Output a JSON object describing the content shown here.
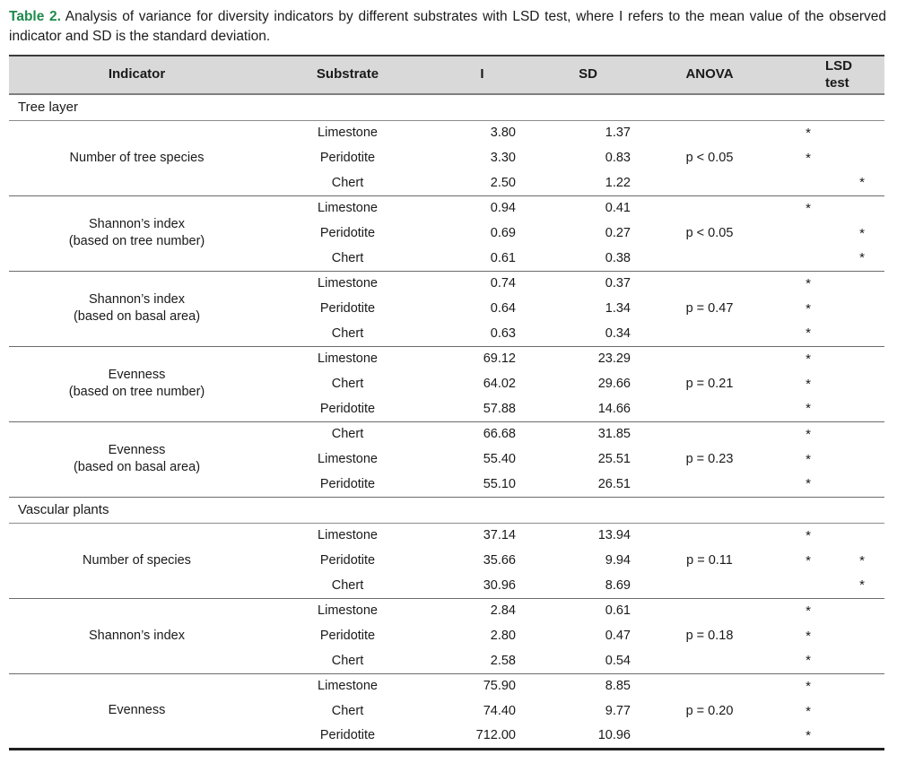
{
  "caption": {
    "label": "Table 2.",
    "text": "Analysis of variance for diversity indicators by different substrates with LSD test, where I refers to the mean value of the observed indicator and SD is the standard deviation."
  },
  "accent_color": "#1e8a4c",
  "header": {
    "indicator": "Indicator",
    "substrate": "Substrate",
    "i": "I",
    "sd": "SD",
    "anova": "ANOVA",
    "lsd": "LSD\ntest"
  },
  "sections": [
    {
      "title": "Tree layer",
      "groups": [
        {
          "indicator": "Number of tree species",
          "anova": "p < 0.05",
          "rows": [
            {
              "substrate": "Limestone",
              "i": "3.80",
              "sd": "1.37",
              "lsd1": "*",
              "lsd2": ""
            },
            {
              "substrate": "Peridotite",
              "i": "3.30",
              "sd": "0.83",
              "lsd1": "*",
              "lsd2": ""
            },
            {
              "substrate": "Chert",
              "i": "2.50",
              "sd": "1.22",
              "lsd1": "",
              "lsd2": "*"
            }
          ]
        },
        {
          "indicator": "Shannon’s index\n(based on tree number)",
          "anova": "p < 0.05",
          "rows": [
            {
              "substrate": "Limestone",
              "i": "0.94",
              "sd": "0.41",
              "lsd1": "*",
              "lsd2": ""
            },
            {
              "substrate": "Peridotite",
              "i": "0.69",
              "sd": "0.27",
              "lsd1": "",
              "lsd2": "*"
            },
            {
              "substrate": "Chert",
              "i": "0.61",
              "sd": "0.38",
              "lsd1": "",
              "lsd2": "*"
            }
          ]
        },
        {
          "indicator": "Shannon’s index\n(based on basal area)",
          "anova": "p = 0.47",
          "rows": [
            {
              "substrate": "Limestone",
              "i": "0.74",
              "sd": "0.37",
              "lsd1": "*",
              "lsd2": ""
            },
            {
              "substrate": "Peridotite",
              "i": "0.64",
              "sd": "1.34",
              "lsd1": "*",
              "lsd2": ""
            },
            {
              "substrate": "Chert",
              "i": "0.63",
              "sd": "0.34",
              "lsd1": "*",
              "lsd2": ""
            }
          ]
        },
        {
          "indicator": "Evenness\n(based on tree number)",
          "anova": "p = 0.21",
          "rows": [
            {
              "substrate": "Limestone",
              "i": "69.12",
              "sd": "23.29",
              "lsd1": "*",
              "lsd2": ""
            },
            {
              "substrate": "Chert",
              "i": "64.02",
              "sd": "29.66",
              "lsd1": "*",
              "lsd2": ""
            },
            {
              "substrate": "Peridotite",
              "i": "57.88",
              "sd": "14.66",
              "lsd1": "*",
              "lsd2": ""
            }
          ]
        },
        {
          "indicator": "Evenness\n(based on basal area)",
          "anova": "p = 0.23",
          "rows": [
            {
              "substrate": "Chert",
              "i": "66.68",
              "sd": "31.85",
              "lsd1": "*",
              "lsd2": ""
            },
            {
              "substrate": "Limestone",
              "i": "55.40",
              "sd": "25.51",
              "lsd1": "*",
              "lsd2": ""
            },
            {
              "substrate": "Peridotite",
              "i": "55.10",
              "sd": "26.51",
              "lsd1": "*",
              "lsd2": ""
            }
          ]
        }
      ]
    },
    {
      "title": "Vascular plants",
      "groups": [
        {
          "indicator": "Number of species",
          "anova": "p = 0.11",
          "rows": [
            {
              "substrate": "Limestone",
              "i": "37.14",
              "sd": "13.94",
              "lsd1": "*",
              "lsd2": ""
            },
            {
              "substrate": "Peridotite",
              "i": "35.66",
              "sd": "9.94",
              "lsd1": "*",
              "lsd2": "*"
            },
            {
              "substrate": "Chert",
              "i": "30.96",
              "sd": "8.69",
              "lsd1": "",
              "lsd2": "*"
            }
          ]
        },
        {
          "indicator": "Shannon’s index",
          "anova": "p = 0.18",
          "rows": [
            {
              "substrate": "Limestone",
              "i": "2.84",
              "sd": "0.61",
              "lsd1": "*",
              "lsd2": ""
            },
            {
              "substrate": "Peridotite",
              "i": "2.80",
              "sd": "0.47",
              "lsd1": "*",
              "lsd2": ""
            },
            {
              "substrate": "Chert",
              "i": "2.58",
              "sd": "0.54",
              "lsd1": "*",
              "lsd2": ""
            }
          ]
        },
        {
          "indicator": "Evenness",
          "anova": "p = 0.20",
          "rows": [
            {
              "substrate": "Limestone",
              "i": "75.90",
              "sd": "8.85",
              "lsd1": "*",
              "lsd2": ""
            },
            {
              "substrate": "Chert",
              "i": "74.40",
              "sd": "9.77",
              "lsd1": "*",
              "lsd2": ""
            },
            {
              "substrate": "Peridotite",
              "i": "712.00",
              "sd": "10.96",
              "lsd1": "*",
              "lsd2": ""
            }
          ]
        }
      ]
    }
  ]
}
